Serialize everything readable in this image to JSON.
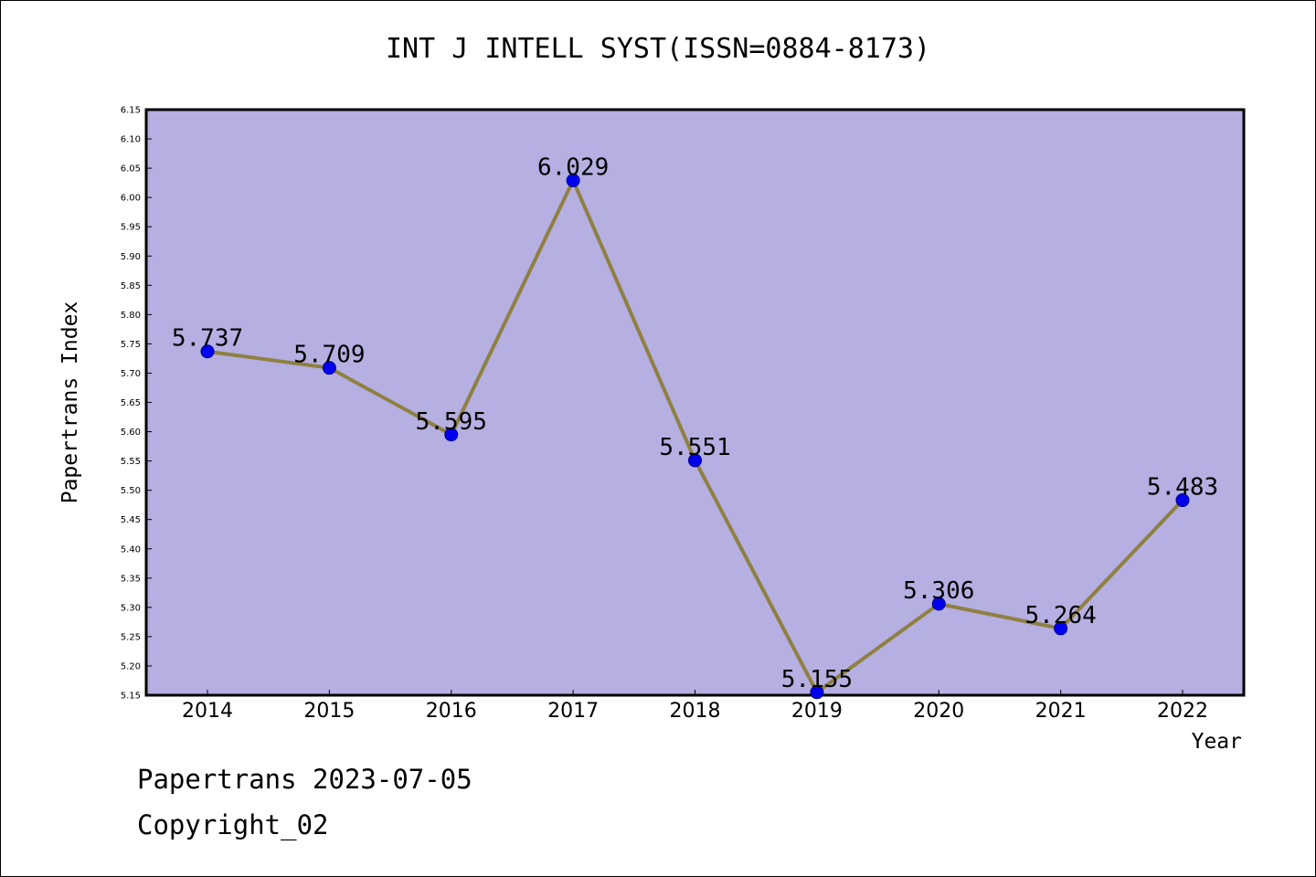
{
  "chart_data": {
    "type": "line",
    "title": "INT J INTELL SYST(ISSN=0884-8173)",
    "xlabel": "Year",
    "ylabel": "Papertrans Index",
    "x": [
      "2014",
      "2015",
      "2016",
      "2017",
      "2018",
      "2019",
      "2020",
      "2021",
      "2022"
    ],
    "series": [
      {
        "values": [
          5.737,
          5.709,
          5.595,
          6.029,
          5.551,
          5.155,
          5.306,
          5.264,
          5.483
        ],
        "labels": [
          "5.737",
          "5.709",
          "5.595",
          "6.029",
          "5.551",
          "5.155",
          "5.306",
          "5.264",
          "5.483"
        ]
      }
    ],
    "ylim": [
      5.15,
      6.15
    ],
    "yticks": [
      "5.15",
      "5.20",
      "5.25",
      "5.30",
      "5.35",
      "5.40",
      "5.45",
      "5.50",
      "5.55",
      "5.60",
      "5.65",
      "5.70",
      "5.75",
      "5.80",
      "5.85",
      "5.90",
      "5.95",
      "6.00",
      "6.05",
      "6.10",
      "6.15"
    ],
    "grid": false,
    "legend": "none",
    "colors": {
      "plot_background": "#b5afe2",
      "line": "#8e8040",
      "marker": "#0000ee",
      "marker_edge": "#00008b"
    }
  },
  "footer": {
    "line1": "Papertrans 2023-07-05",
    "line2": "Copyright_02"
  }
}
